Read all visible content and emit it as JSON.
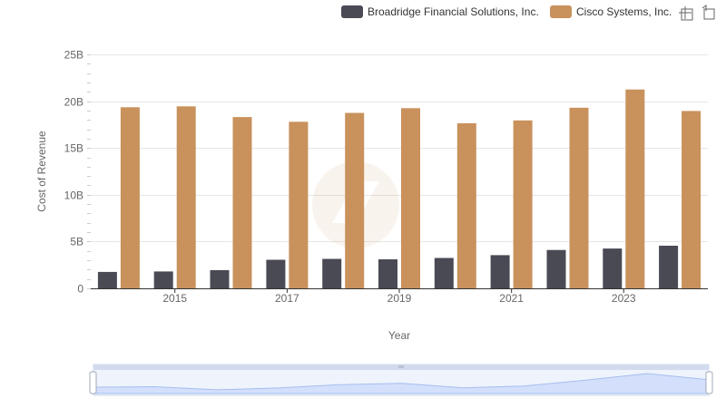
{
  "chart_data": {
    "type": "bar",
    "x": [
      2014,
      2015,
      2016,
      2017,
      2018,
      2019,
      2020,
      2021,
      2022,
      2023,
      2024
    ],
    "x_tick_labels": [
      "2015",
      "2017",
      "2019",
      "2021",
      "2023"
    ],
    "y_tick_labels": [
      "0",
      "5B",
      "10B",
      "15B",
      "20B",
      "25B"
    ],
    "ylim": [
      0,
      25000000000
    ],
    "xlabel": "Year",
    "ylabel": "Cost of Revenue",
    "grid": true,
    "legend_position": "top-right",
    "series": [
      {
        "name": "Broadridge Financial Solutions, Inc.",
        "color": "#4a4a55",
        "values": [
          1750000000,
          1800000000,
          1950000000,
          3050000000,
          3150000000,
          3100000000,
          3250000000,
          3550000000,
          4100000000,
          4250000000,
          4550000000
        ]
      },
      {
        "name": "Cisco Systems, Inc.",
        "color": "#c9915c",
        "values": [
          19350000000,
          19450000000,
          18300000000,
          17800000000,
          18750000000,
          19250000000,
          17650000000,
          17950000000,
          19300000000,
          21250000000,
          18950000000
        ]
      }
    ]
  },
  "toolbar": {
    "zoom_icon": "zoom-icon",
    "restore_icon": "restore-icon"
  },
  "data_zoom": {
    "range_start": 0,
    "range_end": 100
  }
}
